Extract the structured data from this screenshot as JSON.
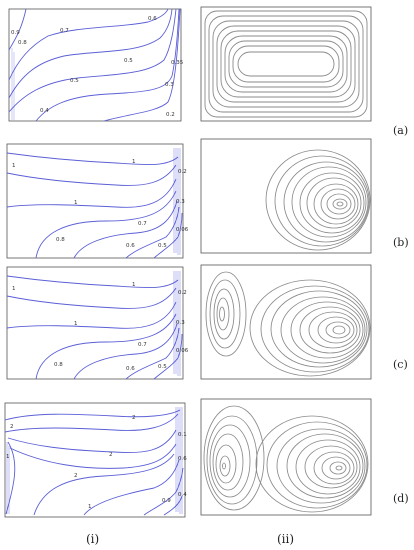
{
  "rows": [
    {
      "label": "(a)",
      "temperature_labels": [
        "0.9",
        "0.8",
        "0.7",
        "0.6",
        "0.5",
        "0.5",
        "0.35",
        "0.3",
        "0.4",
        "0.2"
      ]
    },
    {
      "label": "(b)",
      "temperature_labels": [
        "1",
        "1",
        "1",
        "0.2",
        "0.3",
        "0.7",
        "0.06",
        "0.8",
        "0.6",
        "0.5"
      ]
    },
    {
      "label": "(c)",
      "temperature_labels": [
        "1",
        "1",
        "1",
        "0.2",
        "0.3",
        "0.7",
        "0.06",
        "0.8",
        "0.6",
        "0.5"
      ]
    },
    {
      "label": "(d)",
      "temperature_labels": [
        "2",
        "2",
        "2",
        "2",
        "1",
        "0.1",
        "0.6",
        "0.4",
        "0.9",
        "1"
      ]
    }
  ],
  "columns": [
    "(i)",
    "(ii)"
  ],
  "colors": {
    "isotherm": "#5b5fd6",
    "streamline": "#8a8a8a",
    "frame": "#555555"
  }
}
